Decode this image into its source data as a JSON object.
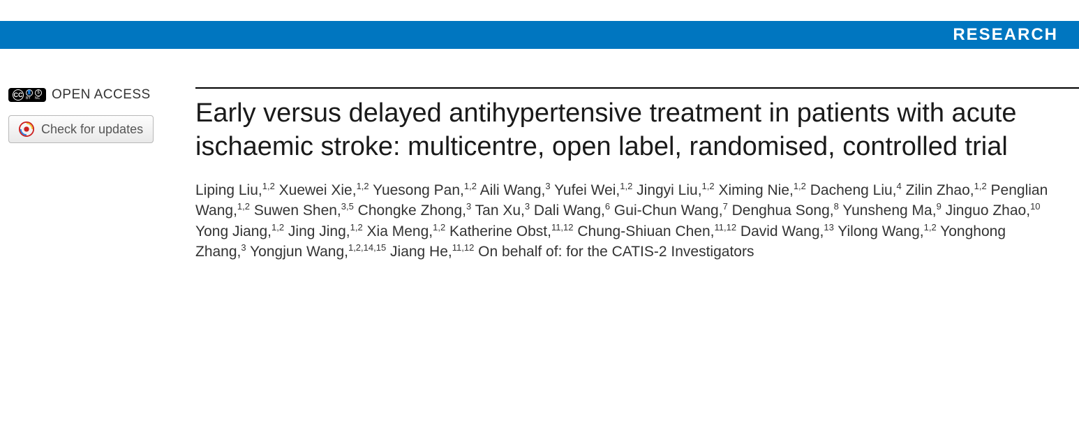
{
  "banner": {
    "label": "RESEARCH",
    "background_color": "#0076c0",
    "text_color": "#ffffff"
  },
  "sidebar": {
    "open_access_label": "OPEN ACCESS",
    "cc_label": "CC",
    "by_label": "BY",
    "nc_label": "NC",
    "updates_button_label": "Check for updates"
  },
  "article": {
    "title": "Early versus delayed antihypertensive treatment in patients with acute ischaemic stroke: multicentre, open label, randomised, controlled trial",
    "authors": [
      {
        "name": "Liping Liu",
        "affil": "1,2"
      },
      {
        "name": "Xuewei Xie",
        "affil": "1,2"
      },
      {
        "name": "Yuesong Pan",
        "affil": "1,2"
      },
      {
        "name": "Aili Wang",
        "affil": "3"
      },
      {
        "name": "Yufei Wei",
        "affil": "1,2"
      },
      {
        "name": "Jingyi Liu",
        "affil": "1,2"
      },
      {
        "name": "Ximing Nie",
        "affil": "1,2"
      },
      {
        "name": "Dacheng Liu",
        "affil": "4"
      },
      {
        "name": "Zilin Zhao",
        "affil": "1,2"
      },
      {
        "name": "Penglian Wang",
        "affil": "1,2"
      },
      {
        "name": "Suwen Shen",
        "affil": "3,5"
      },
      {
        "name": "Chongke Zhong",
        "affil": "3"
      },
      {
        "name": "Tan Xu",
        "affil": "3"
      },
      {
        "name": "Dali Wang",
        "affil": "6"
      },
      {
        "name": "Gui-Chun Wang",
        "affil": "7"
      },
      {
        "name": "Denghua Song",
        "affil": "8"
      },
      {
        "name": "Yunsheng Ma",
        "affil": "9"
      },
      {
        "name": "Jinguo Zhao",
        "affil": "10"
      },
      {
        "name": "Yong Jiang",
        "affil": "1,2"
      },
      {
        "name": "Jing Jing",
        "affil": "1,2"
      },
      {
        "name": "Xia Meng",
        "affil": "1,2"
      },
      {
        "name": "Katherine Obst",
        "affil": "11,12"
      },
      {
        "name": "Chung-Shiuan Chen",
        "affil": "11,12"
      },
      {
        "name": "David Wang",
        "affil": "13"
      },
      {
        "name": "Yilong Wang",
        "affil": "1,2"
      },
      {
        "name": "Yonghong Zhang",
        "affil": "3"
      },
      {
        "name": "Yongjun Wang",
        "affil": "1,2,14,15"
      },
      {
        "name": "Jiang He",
        "affil": "11,12"
      }
    ],
    "group_suffix": "On behalf of: for the CATIS-2 Investigators"
  },
  "styling": {
    "title_fontsize": 38,
    "title_color": "#1a1a1a",
    "author_fontsize": 21,
    "author_color": "#333333",
    "rule_color": "#000000",
    "page_bg": "#ffffff"
  }
}
